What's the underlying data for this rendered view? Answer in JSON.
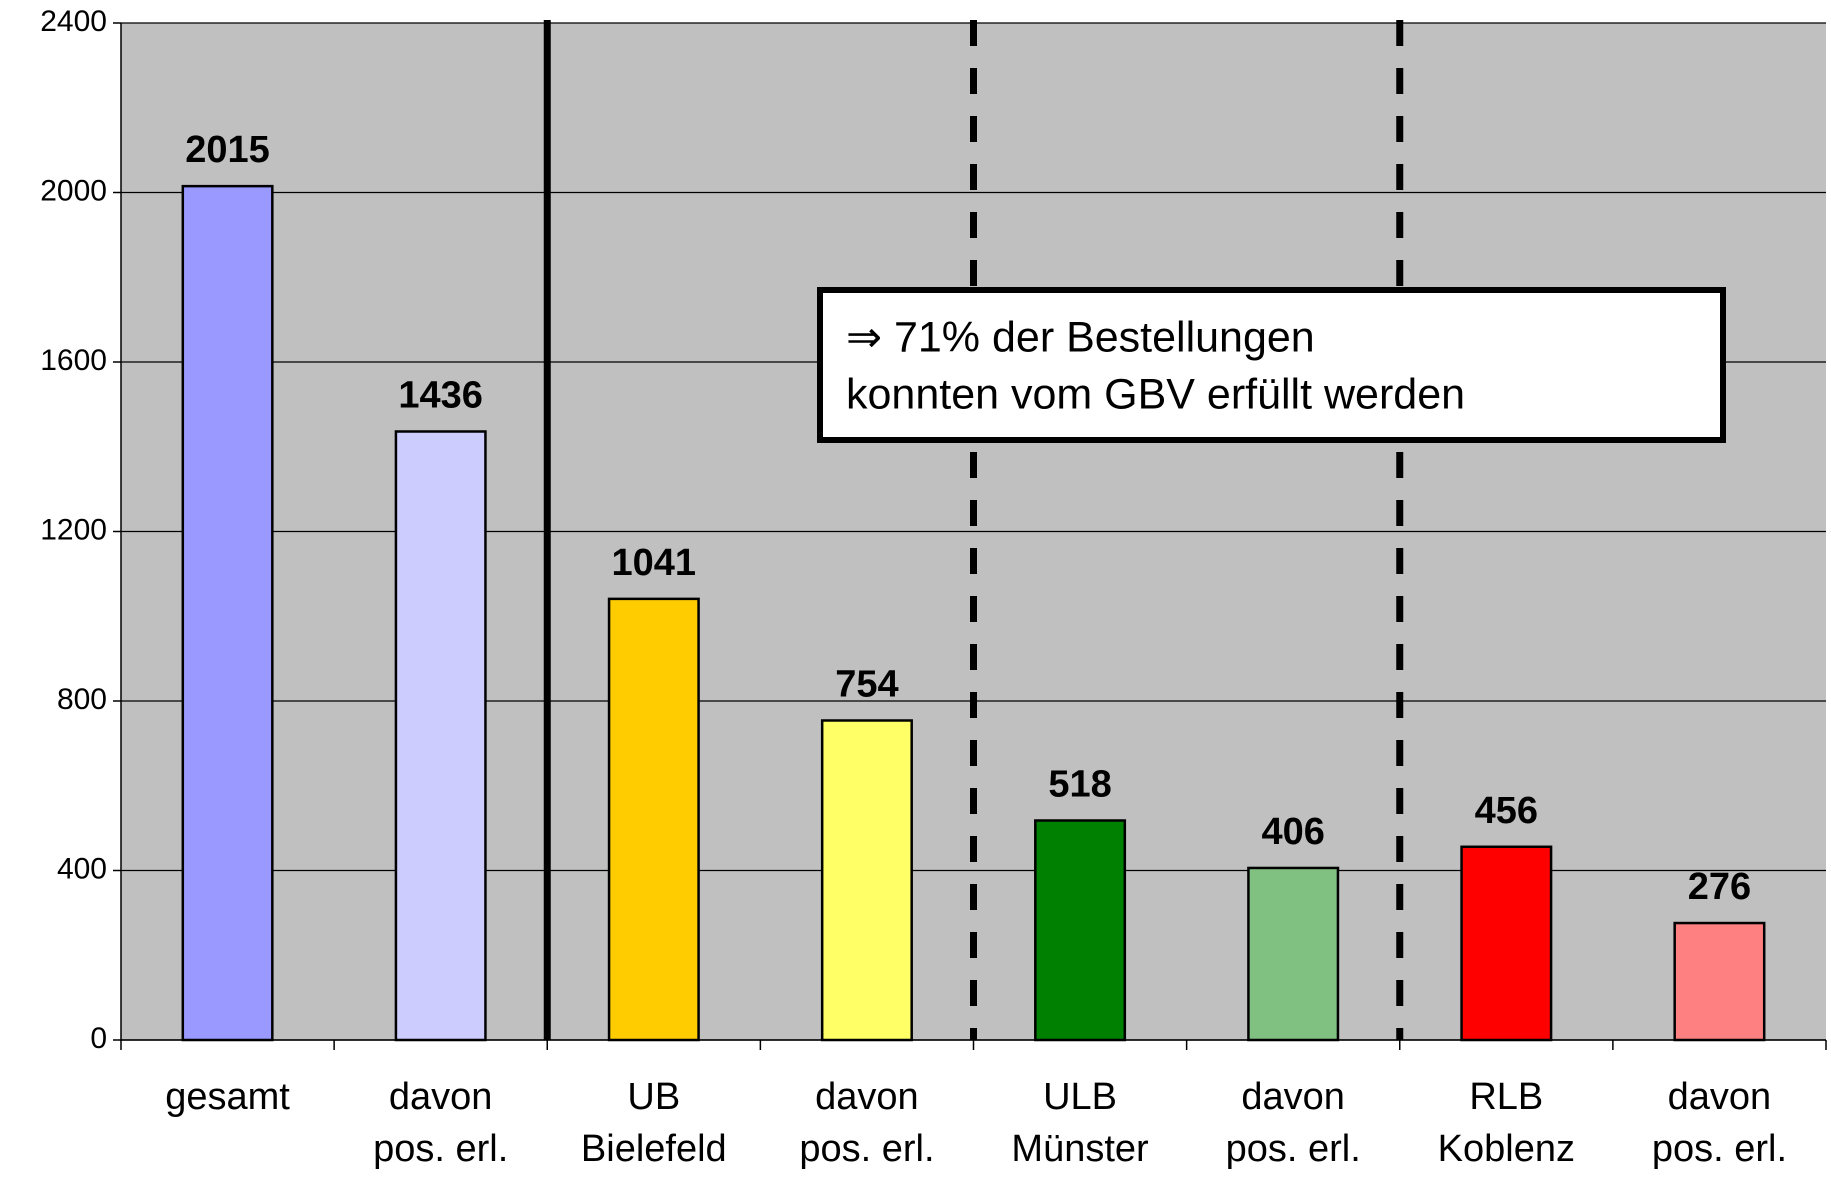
{
  "chart_data": {
    "type": "bar",
    "categories": [
      [
        "gesamt"
      ],
      [
        "davon",
        "pos. erl."
      ],
      [
        "UB",
        "Bielefeld"
      ],
      [
        "davon",
        "pos. erl."
      ],
      [
        "ULB",
        "Münster"
      ],
      [
        "davon",
        "pos. erl."
      ],
      [
        "RLB",
        "Koblenz"
      ],
      [
        "davon",
        "pos. erl."
      ]
    ],
    "values": [
      2015,
      1436,
      1041,
      754,
      518,
      406,
      456,
      276
    ],
    "colors": [
      "#9999ff",
      "#ccccff",
      "#ffcc00",
      "#ffff66",
      "#008000",
      "#80c080",
      "#ff0000",
      "#ff8080"
    ],
    "ylim": [
      0,
      2400
    ],
    "yticks": [
      0,
      400,
      800,
      1200,
      1600,
      2000,
      2400
    ],
    "grid": true,
    "annotation": [
      "⇒ 71% der Bestellungen",
      "konnten vom GBV erfüllt werden"
    ]
  }
}
